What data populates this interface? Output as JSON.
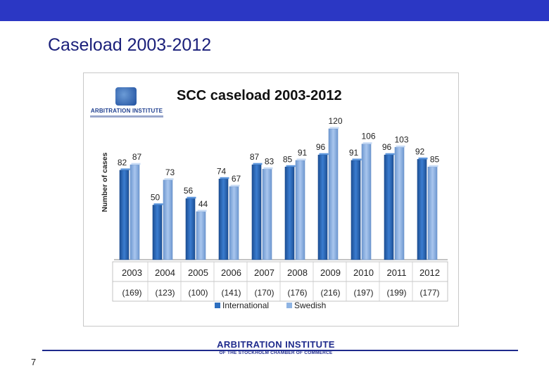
{
  "slide": {
    "title": "Caseload 2003-2012",
    "page_number": "7"
  },
  "logo": {
    "name": "ARBITRATION INSTITUTE",
    "subtitle": "OF THE STOCKHOLM CHAMBER OF COMMERCE"
  },
  "colors": {
    "top_bar": "#2b37c4",
    "international": "#2e6fbf",
    "swedish": "#8fb4e3",
    "title_text": "#1a1f7a"
  },
  "chart_data": {
    "type": "bar",
    "title": "SCC caseload 2003-2012",
    "ylabel": "Number of cases",
    "xlabel": "",
    "ylim": [
      0,
      130
    ],
    "grid": false,
    "legend": "bottom",
    "categories": [
      "2003",
      "2004",
      "2005",
      "2006",
      "2007",
      "2008",
      "2009",
      "2010",
      "2011",
      "2012"
    ],
    "totals": [
      "(169)",
      "(123)",
      "(100)",
      "(141)",
      "(170)",
      "(176)",
      "(216)",
      "(197)",
      "(199)",
      "(177)"
    ],
    "series": [
      {
        "name": "International",
        "values": [
          82,
          50,
          56,
          74,
          87,
          85,
          96,
          91,
          96,
          92
        ]
      },
      {
        "name": "Swedish",
        "values": [
          87,
          73,
          44,
          67,
          83,
          91,
          120,
          106,
          103,
          85
        ]
      }
    ]
  }
}
